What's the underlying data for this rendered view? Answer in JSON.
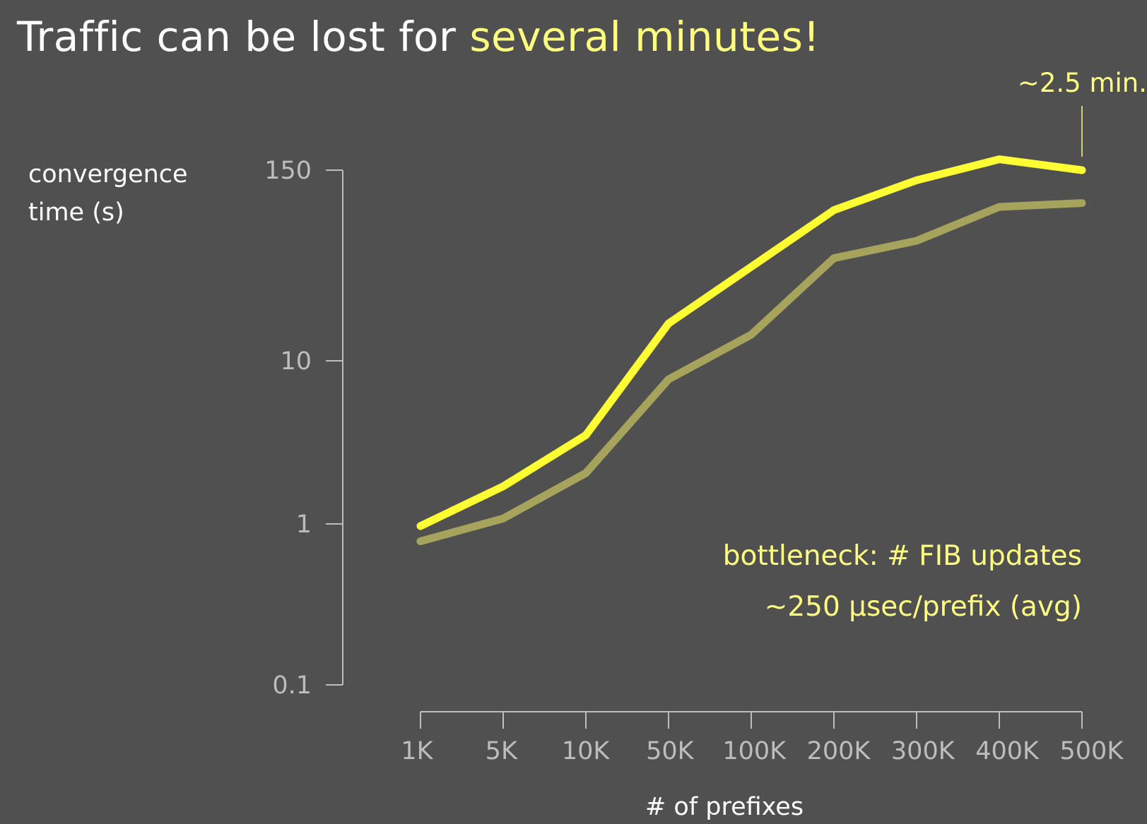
{
  "title": {
    "prefix": "Traffic can be lost for ",
    "highlight": "several minutes!"
  },
  "colors": {
    "background": "#505050",
    "title_text": "#ffffff",
    "highlight": "#ffff80",
    "axis": "#bdbdbd"
  },
  "chart_data": {
    "type": "line",
    "x": [
      "1K",
      "5K",
      "10K",
      "50K",
      "100K",
      "200K",
      "300K",
      "400K",
      "500K"
    ],
    "ylabel_lines": [
      "convergence",
      "time (s)"
    ],
    "xlabel": "# of prefixes",
    "yscale": "log",
    "ylim": [
      0.1,
      150
    ],
    "yticks": [
      {
        "value": 0.1,
        "label": "0.1"
      },
      {
        "value": 1,
        "label": "1"
      },
      {
        "value": 10,
        "label": "10"
      },
      {
        "value": 150,
        "label": "150"
      }
    ],
    "grid": false,
    "series": [
      {
        "color": "#ffff33",
        "values": [
          0.97,
          1.7,
          3.5,
          17,
          38,
          85,
          130,
          175,
          150
        ]
      },
      {
        "color": "#a6a45c",
        "values": [
          0.78,
          1.08,
          2.05,
          7.7,
          14.5,
          43,
          55,
          89,
          94
        ]
      }
    ],
    "annotations": [
      {
        "text": "~2.5 min.",
        "target_series": 0,
        "target_index": 8
      },
      {
        "text": "bottleneck: # FIB updates"
      },
      {
        "text": "~250 µsec/prefix (avg)"
      }
    ]
  }
}
